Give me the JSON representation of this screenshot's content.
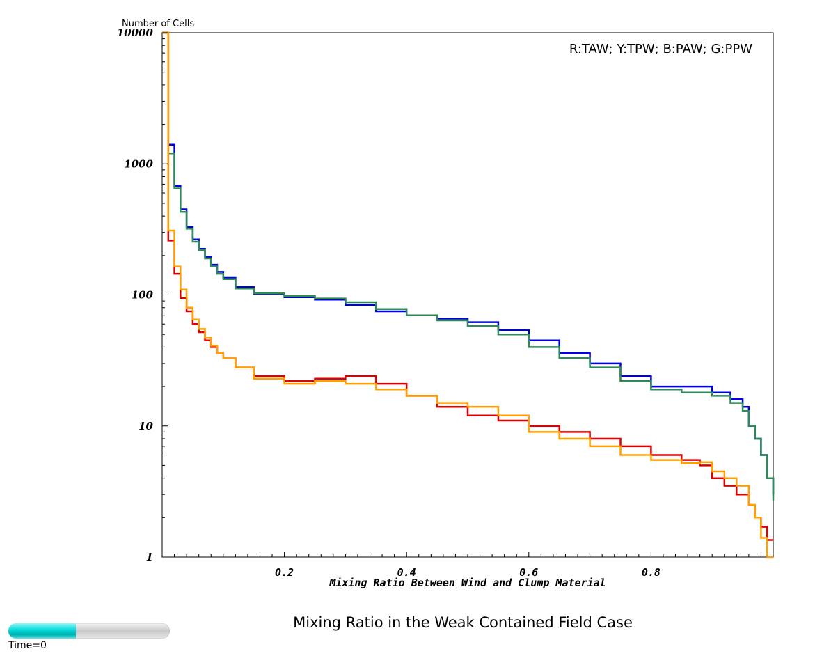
{
  "chart_data": {
    "type": "line",
    "title": "Mixing Ratio in the Weak Contained Field Case",
    "xlabel": "Mixing Ratio Between Wind and Clump Material",
    "ylabel": "Number of Cells",
    "legend_text": "R:TAW; Y:TPW; B:PAW; G:PPW",
    "legend_position": "top-right",
    "xlim": [
      0,
      1
    ],
    "ylim": [
      1,
      10000
    ],
    "yscale": "log",
    "grid": false,
    "step": true,
    "x_ticks": [
      "0.2",
      "0.4",
      "0.6",
      "0.8"
    ],
    "y_ticks": [
      "1",
      "10",
      "100",
      "1000",
      "10000"
    ],
    "series": [
      {
        "color": "#0000e0",
        "x": [
          0,
          0.01,
          0.02,
          0.03,
          0.04,
          0.05,
          0.06,
          0.07,
          0.08,
          0.09,
          0.1,
          0.12,
          0.15,
          0.2,
          0.25,
          0.3,
          0.35,
          0.4,
          0.45,
          0.5,
          0.55,
          0.6,
          0.65,
          0.7,
          0.75,
          0.8,
          0.85,
          0.9,
          0.93,
          0.95,
          0.96,
          0.97,
          0.98,
          0.99,
          1.0
        ],
        "values": [
          10000,
          1400,
          680,
          450,
          330,
          265,
          225,
          195,
          170,
          150,
          135,
          115,
          102,
          96,
          92,
          84,
          75,
          70,
          66,
          62,
          54,
          45,
          36,
          30,
          24,
          20,
          20,
          18,
          16,
          14,
          10,
          8,
          6,
          4,
          3
        ]
      },
      {
        "color": "#2e8b57",
        "x": [
          0,
          0.01,
          0.02,
          0.03,
          0.04,
          0.05,
          0.06,
          0.07,
          0.08,
          0.09,
          0.1,
          0.12,
          0.15,
          0.2,
          0.25,
          0.3,
          0.35,
          0.4,
          0.45,
          0.5,
          0.55,
          0.6,
          0.65,
          0.7,
          0.75,
          0.8,
          0.85,
          0.9,
          0.93,
          0.95,
          0.96,
          0.97,
          0.98,
          0.99,
          1.0
        ],
        "values": [
          10000,
          1200,
          650,
          430,
          320,
          255,
          220,
          190,
          165,
          145,
          132,
          112,
          103,
          98,
          94,
          88,
          78,
          70,
          64,
          58,
          50,
          40,
          33,
          28,
          22,
          19,
          18,
          17,
          15,
          13,
          10,
          8,
          6,
          4,
          2.7
        ]
      },
      {
        "color": "#e00000",
        "x": [
          0,
          0.01,
          0.02,
          0.03,
          0.04,
          0.05,
          0.06,
          0.07,
          0.08,
          0.09,
          0.1,
          0.12,
          0.15,
          0.2,
          0.25,
          0.3,
          0.35,
          0.4,
          0.45,
          0.5,
          0.55,
          0.6,
          0.65,
          0.7,
          0.75,
          0.8,
          0.85,
          0.88,
          0.9,
          0.92,
          0.94,
          0.96,
          0.97,
          0.98,
          0.99
        ],
        "values": [
          10000,
          260,
          145,
          95,
          75,
          60,
          52,
          45,
          40,
          36,
          33,
          28,
          24,
          22,
          23,
          24,
          21,
          17,
          14,
          12,
          11,
          10,
          9,
          8,
          7,
          6,
          5.5,
          5,
          4,
          3.5,
          3,
          2.5,
          2,
          1.7,
          1.35
        ]
      },
      {
        "color": "#ffa000",
        "x": [
          0,
          0.01,
          0.02,
          0.03,
          0.04,
          0.05,
          0.06,
          0.07,
          0.08,
          0.09,
          0.1,
          0.12,
          0.15,
          0.2,
          0.25,
          0.3,
          0.35,
          0.4,
          0.45,
          0.5,
          0.55,
          0.6,
          0.65,
          0.7,
          0.75,
          0.8,
          0.85,
          0.88,
          0.9,
          0.92,
          0.94,
          0.96,
          0.97,
          0.98,
          0.99
        ],
        "values": [
          10000,
          310,
          165,
          110,
          80,
          65,
          55,
          47,
          41,
          36,
          33,
          28,
          23,
          21,
          22,
          21,
          19,
          17,
          15,
          14,
          12,
          9,
          8,
          7,
          6,
          5.5,
          5.2,
          5.3,
          4.5,
          4,
          3.5,
          2.5,
          2,
          1.4,
          1
        ]
      }
    ]
  },
  "footer": {
    "time_label": "Time=0",
    "time_progress": 0.42
  }
}
